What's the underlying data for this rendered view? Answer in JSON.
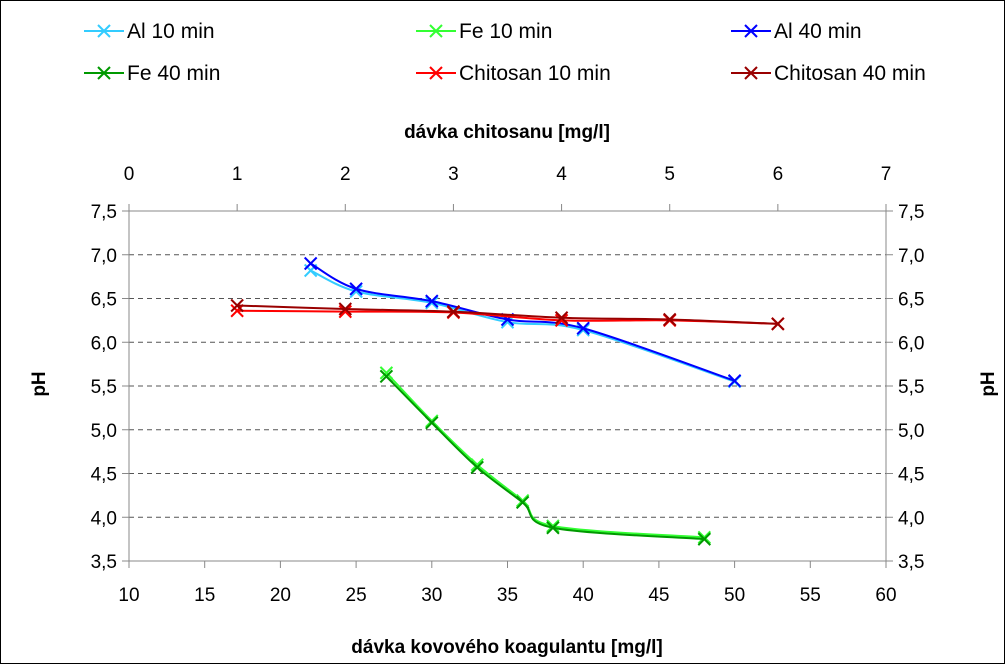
{
  "chart_data": {
    "type": "line",
    "xlabel": "dávka kovového koagulantu [mg/l]",
    "x2label": "dávka chitosanu [mg/l]",
    "ylabel": "pH",
    "y2label": "pH",
    "xlim": [
      10,
      60
    ],
    "x2lim": [
      0,
      7
    ],
    "ylim": [
      3.5,
      7.5
    ],
    "x_ticks": [
      "10",
      "15",
      "20",
      "25",
      "30",
      "35",
      "40",
      "45",
      "50",
      "55",
      "60"
    ],
    "x2_ticks": [
      "0",
      "1",
      "2",
      "3",
      "4",
      "5",
      "6",
      "7"
    ],
    "y_ticks": [
      "3,5",
      "4,0",
      "4,5",
      "5,0",
      "5,5",
      "6,0",
      "6,5",
      "7,0",
      "7,5"
    ],
    "grid": "horizontal-dashed",
    "legend_position": "top",
    "series": [
      {
        "name": "Al 10 min",
        "color": "#33CCFF",
        "axis": "bottom",
        "x": [
          22,
          25,
          30,
          35,
          40,
          50
        ],
        "y": [
          6.82,
          6.58,
          6.45,
          6.23,
          6.14,
          5.55
        ]
      },
      {
        "name": "Fe 10 min",
        "color": "#33FF33",
        "axis": "bottom",
        "x": [
          27,
          30,
          33,
          36,
          38,
          48
        ],
        "y": [
          5.65,
          5.1,
          4.6,
          4.19,
          3.9,
          3.77
        ]
      },
      {
        "name": "Al 40 min",
        "color": "#0000FF",
        "axis": "bottom",
        "x": [
          22,
          25,
          30,
          35,
          40,
          50
        ],
        "y": [
          6.9,
          6.61,
          6.47,
          6.26,
          6.16,
          5.56
        ]
      },
      {
        "name": "Fe 40 min",
        "color": "#009900",
        "axis": "bottom",
        "x": [
          27,
          30,
          33,
          36,
          38,
          48
        ],
        "y": [
          5.61,
          5.08,
          4.57,
          4.17,
          3.88,
          3.75
        ]
      },
      {
        "name": "Chitosan 10 min",
        "color": "#FF0000",
        "axis": "top",
        "x": [
          1,
          2,
          3,
          4,
          5,
          6
        ],
        "y": [
          6.36,
          6.35,
          6.34,
          6.25,
          6.25,
          6.21
        ]
      },
      {
        "name": "Chitosan 40 min",
        "color": "#990000",
        "axis": "top",
        "x": [
          1,
          2,
          3,
          4,
          5,
          6
        ],
        "y": [
          6.42,
          6.38,
          6.35,
          6.28,
          6.26,
          6.21
        ]
      }
    ]
  }
}
